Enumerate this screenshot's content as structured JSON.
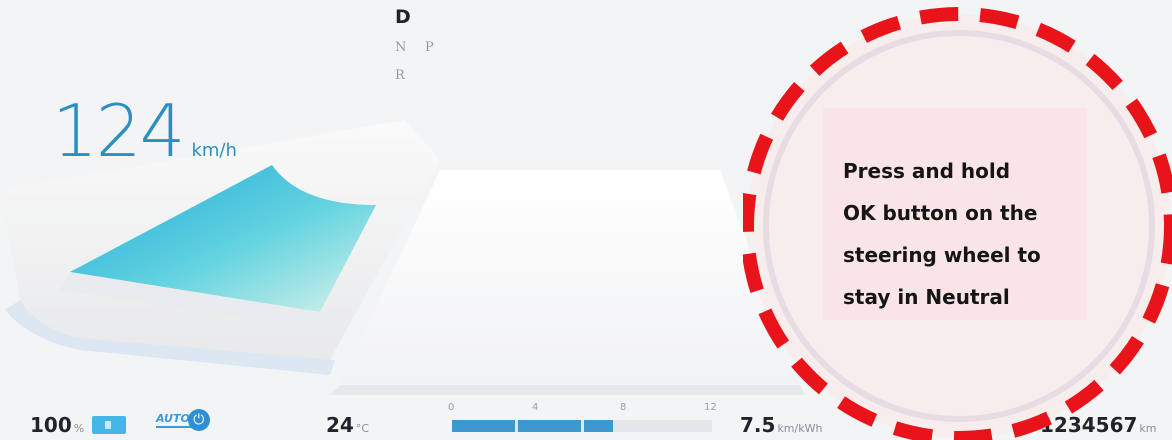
{
  "gear_selector": {
    "active": "D",
    "neutral": "N",
    "park": "P",
    "reverse": "R"
  },
  "speed": {
    "value": "124",
    "unit": "km/h"
  },
  "status_bar": {
    "battery_percent": "100",
    "battery_unit": "%",
    "auto_label": "AUTO",
    "temperature": "24",
    "temperature_unit": "°C",
    "efficiency": "7.5",
    "efficiency_unit": "km/kWh",
    "odometer": "1234567",
    "odometer_unit": "km"
  },
  "efficiency_scale": {
    "ticks": [
      "0",
      "4",
      "8",
      "12"
    ],
    "fill_fraction": 0.62
  },
  "notification": {
    "lines": [
      "Press and hold",
      "OK button on the",
      "steering wheel to",
      "stay in Neutral"
    ],
    "highlight_color": "#e8141a"
  },
  "colors": {
    "speed": "#2b8fc2",
    "accent": "#45b6e6"
  }
}
